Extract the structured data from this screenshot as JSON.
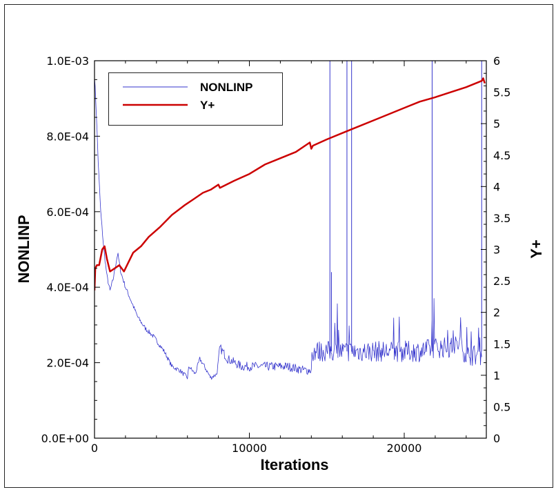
{
  "chart_data": {
    "type": "line",
    "xlabel": "Iterations",
    "ylabel": "NONLINP",
    "y2label": "Y+",
    "xlim": [
      0,
      25300
    ],
    "ylim": [
      0,
      0.001
    ],
    "y2lim": [
      0,
      6
    ],
    "x_ticks": [
      0,
      10000,
      20000
    ],
    "x_tick_labels": [
      "0",
      "10000",
      "20000"
    ],
    "y_ticks": [
      0,
      0.0002,
      0.0004,
      0.0006,
      0.0008,
      0.001
    ],
    "y_tick_labels": [
      "0.0E+00",
      "2.0E-04",
      "4.0E-04",
      "6.0E-04",
      "8.0E-04",
      "1.0E-03"
    ],
    "y2_ticks": [
      0,
      0.5,
      1,
      1.5,
      2,
      2.5,
      3,
      3.5,
      4,
      4.5,
      5,
      5.5,
      6
    ],
    "y2_tick_labels": [
      "0",
      "0.5",
      "1",
      "1.5",
      "2",
      "2.5",
      "3",
      "3.5",
      "4",
      "4.5",
      "5",
      "5.5",
      "6"
    ],
    "legend": {
      "placement": "top-left",
      "entries": [
        {
          "name": "NONLINP",
          "color": "#3333cc"
        },
        {
          "name": "Y+",
          "color": "#cc0000"
        }
      ]
    },
    "series": [
      {
        "name": "NONLINP",
        "axis": "left",
        "color": "#3333cc",
        "noisy": true,
        "x": [
          0,
          100,
          250,
          400,
          600,
          800,
          1000,
          1200,
          1500,
          1700,
          2000,
          2400,
          2800,
          3300,
          3800,
          4500,
          5000,
          5500,
          6000,
          6100,
          6500,
          6800,
          7100,
          7500,
          7900,
          8100,
          8600,
          9500,
          10500,
          11500,
          12500,
          13500,
          14000,
          14050,
          15000,
          16000,
          17000,
          18000,
          19000,
          20000,
          21000,
          22000,
          23000,
          23600,
          24000,
          25000
        ],
        "y": [
          0.00096,
          0.00088,
          0.00072,
          0.0006,
          0.0005,
          0.00043,
          0.00039,
          0.00042,
          0.00049,
          0.00044,
          0.0004,
          0.00036,
          0.00032,
          0.00029,
          0.00027,
          0.00023,
          0.00019,
          0.00018,
          0.00016,
          0.00019,
          0.00017,
          0.00021,
          0.00019,
          0.00016,
          0.00017,
          0.00024,
          0.00021,
          0.00019,
          0.00019,
          0.00019,
          0.00019,
          0.00018,
          0.00018,
          0.00023,
          0.00023,
          0.00023,
          0.00023,
          0.00023,
          0.00023,
          0.00023,
          0.00023,
          0.00024,
          0.00024,
          0.00025,
          0.00022,
          0.00022
        ],
        "spikes": [
          {
            "x": 15200,
            "y": 0.001
          },
          {
            "x": 15300,
            "y": 0.00044
          },
          {
            "x": 16300,
            "y": 0.001
          },
          {
            "x": 16600,
            "y": 0.001
          },
          {
            "x": 21800,
            "y": 0.001
          },
          {
            "x": 25000,
            "y": 0.001
          }
        ]
      },
      {
        "name": "Y+",
        "axis": "right",
        "color": "#cc0000",
        "x": [
          0,
          50,
          150,
          300,
          500,
          650,
          800,
          1000,
          1300,
          1600,
          1900,
          2200,
          2500,
          3000,
          3500,
          4200,
          5000,
          5800,
          6400,
          7000,
          7500,
          8000,
          8100,
          9000,
          10000,
          11000,
          12000,
          13000,
          13900,
          14000,
          14100,
          15000,
          16000,
          17000,
          18000,
          19000,
          20000,
          21000,
          22000,
          23000,
          24000,
          25000,
          25100,
          25200
        ],
        "y": [
          2.35,
          2.7,
          2.75,
          2.75,
          3.0,
          3.05,
          2.85,
          2.65,
          2.7,
          2.75,
          2.65,
          2.8,
          2.95,
          3.05,
          3.2,
          3.35,
          3.55,
          3.7,
          3.8,
          3.9,
          3.95,
          4.03,
          3.98,
          4.09,
          4.2,
          4.35,
          4.45,
          4.55,
          4.7,
          4.6,
          4.65,
          4.75,
          4.85,
          4.95,
          5.05,
          5.15,
          5.25,
          5.35,
          5.42,
          5.5,
          5.58,
          5.68,
          5.72,
          5.64
        ]
      }
    ]
  }
}
